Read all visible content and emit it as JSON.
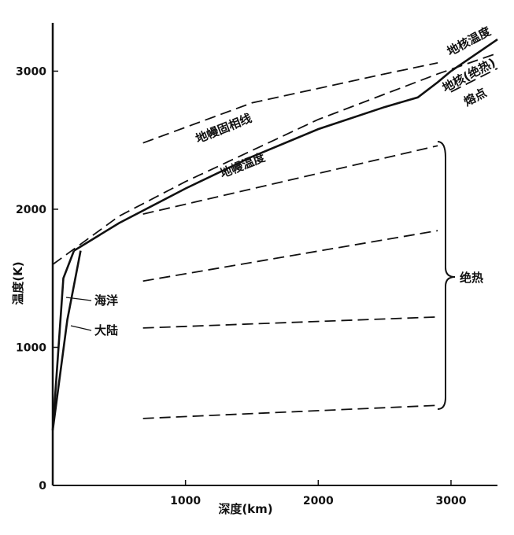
{
  "chart_data": {
    "type": "line",
    "x_label": "深度(km)",
    "y_label": "温度(K)",
    "xlim": [
      0,
      3350
    ],
    "ylim": [
      0,
      3350
    ],
    "xticks": [
      1000,
      2000,
      3000
    ],
    "yticks": [
      0,
      1000,
      2000,
      3000
    ],
    "series": [
      {
        "name": "海洋",
        "color": "#111",
        "style": "solid",
        "x": [
          0,
          80,
          160
        ],
        "values": [
          400,
          1500,
          1700
        ]
      },
      {
        "name": "大陆",
        "color": "#111",
        "style": "solid",
        "x": [
          0,
          110,
          210
        ],
        "values": [
          400,
          1200,
          1700
        ]
      },
      {
        "name": "地幔温度",
        "color": "#111",
        "style": "solid",
        "x": [
          160,
          500,
          1000,
          1500,
          2000,
          2500,
          2750,
          2900,
          3000
        ],
        "values": [
          1700,
          1900,
          2150,
          2380,
          2580,
          2740,
          2810,
          2920,
          3000
        ]
      },
      {
        "name": "地核温度",
        "color": "#111",
        "style": "solid",
        "x": [
          3000,
          3350
        ],
        "values": [
          3000,
          3230
        ]
      },
      {
        "name": "地幔固相线",
        "color": "#111",
        "style": "dashed",
        "x": [
          680,
          1500,
          2500,
          2900
        ],
        "values": [
          2480,
          2770,
          2980,
          3060
        ]
      },
      {
        "name": "地核(绝热)",
        "color": "#111",
        "style": "dashed",
        "x": [
          0,
          500,
          1000,
          2000,
          2900,
          3350
        ],
        "values": [
          1600,
          1950,
          2200,
          2650,
          2980,
          3130
        ]
      },
      {
        "name": "熔点",
        "color": "#111",
        "style": "dashed",
        "x": [
          3000,
          3350
        ],
        "values": [
          2850,
          3020
        ]
      },
      {
        "color": "#111",
        "style": "dashed",
        "x": [
          680,
          2900
        ],
        "values": [
          1965,
          2460
        ]
      },
      {
        "color": "#111",
        "style": "dashed",
        "x": [
          680,
          2900
        ],
        "values": [
          1480,
          1845
        ]
      },
      {
        "color": "#111",
        "style": "dashed",
        "x": [
          680,
          2900
        ],
        "values": [
          1140,
          1220
        ]
      },
      {
        "color": "#111",
        "style": "dashed",
        "x": [
          680,
          2900
        ],
        "values": [
          485,
          580
        ]
      }
    ],
    "annotation": "绝热"
  }
}
